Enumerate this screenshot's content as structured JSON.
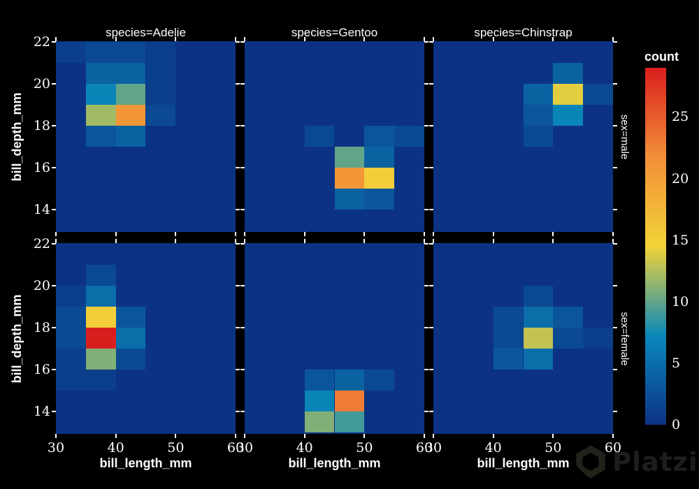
{
  "colors": {
    "figure_background": "#000000",
    "panel_background": "rgb(12,51,131)",
    "text": "#ffffff",
    "watermark": "#22221b"
  },
  "watermark": {
    "text": "Platzi",
    "logo": "platzi-logo"
  },
  "chart_data": {
    "type": "heatmap",
    "subtype": "faceted-2d-histogram",
    "title": "",
    "xlabel": "bill_length_mm",
    "ylabel": "bill_depth_mm",
    "x_axis": {
      "label": "bill_length_mm",
      "range": [
        30,
        60
      ],
      "ticks": [
        30,
        40,
        50,
        60
      ],
      "bin_width": 5
    },
    "y_axis": {
      "label": "bill_depth_mm",
      "range": [
        12.93,
        22.03
      ],
      "ticks": [
        22,
        20,
        18,
        16,
        14
      ],
      "bin_width": 1
    },
    "facet_columns": [
      "species=Adelie",
      "species=Gentoo",
      "species=Chinstrap"
    ],
    "facet_rows": [
      "sex=male",
      "sex=female"
    ],
    "grid": "off",
    "legend_position": "right-colorbar",
    "colorbar": {
      "title": "count",
      "ticks": [
        0,
        5,
        10,
        15,
        20,
        25
      ],
      "min": 0,
      "max": 29,
      "colorscale_name": "Portland",
      "colorscale_stops": [
        [
          0.0,
          "rgb(12,51,131)"
        ],
        [
          0.25,
          "rgb(10,136,186)"
        ],
        [
          0.5,
          "rgb(242,211,56)"
        ],
        [
          0.75,
          "rgb(242,143,56)"
        ],
        [
          1.0,
          "rgb(217,30,30)"
        ]
      ]
    },
    "panels": [
      {
        "species": "Adelie",
        "sex": "male",
        "row": 0,
        "col": 0,
        "cells": [
          {
            "x": 30,
            "y": 21,
            "count": 1
          },
          {
            "x": 35,
            "y": 21,
            "count": 2
          },
          {
            "x": 40,
            "y": 21,
            "count": 2
          },
          {
            "x": 45,
            "y": 21,
            "count": 1
          },
          {
            "x": 35,
            "y": 20,
            "count": 4
          },
          {
            "x": 40,
            "y": 20,
            "count": 4
          },
          {
            "x": 45,
            "y": 20,
            "count": 1
          },
          {
            "x": 35,
            "y": 19,
            "count": 7
          },
          {
            "x": 40,
            "y": 19,
            "count": 10
          },
          {
            "x": 45,
            "y": 19,
            "count": 1
          },
          {
            "x": 35,
            "y": 18,
            "count": 12
          },
          {
            "x": 40,
            "y": 18,
            "count": 21
          },
          {
            "x": 45,
            "y": 18,
            "count": 2
          },
          {
            "x": 35,
            "y": 17,
            "count": 3
          },
          {
            "x": 40,
            "y": 17,
            "count": 4
          }
        ]
      },
      {
        "species": "Gentoo",
        "sex": "male",
        "row": 0,
        "col": 1,
        "cells": [
          {
            "x": 40,
            "y": 17,
            "count": 2
          },
          {
            "x": 50,
            "y": 17,
            "count": 3
          },
          {
            "x": 55,
            "y": 17,
            "count": 2
          },
          {
            "x": 45,
            "y": 16,
            "count": 10
          },
          {
            "x": 50,
            "y": 16,
            "count": 4
          },
          {
            "x": 45,
            "y": 15,
            "count": 21
          },
          {
            "x": 50,
            "y": 15,
            "count": 15
          },
          {
            "x": 45,
            "y": 14,
            "count": 4
          },
          {
            "x": 50,
            "y": 14,
            "count": 3
          }
        ]
      },
      {
        "species": "Chinstrap",
        "sex": "male",
        "row": 0,
        "col": 2,
        "cells": [
          {
            "x": 50,
            "y": 20,
            "count": 4
          },
          {
            "x": 45,
            "y": 19,
            "count": 4
          },
          {
            "x": 50,
            "y": 19,
            "count": 14
          },
          {
            "x": 55,
            "y": 19,
            "count": 2
          },
          {
            "x": 45,
            "y": 18,
            "count": 3
          },
          {
            "x": 50,
            "y": 18,
            "count": 7
          },
          {
            "x": 45,
            "y": 17,
            "count": 2
          }
        ]
      },
      {
        "species": "Adelie",
        "sex": "female",
        "row": 1,
        "col": 0,
        "cells": [
          {
            "x": 35,
            "y": 20,
            "count": 2
          },
          {
            "x": 30,
            "y": 19,
            "count": 1
          },
          {
            "x": 35,
            "y": 19,
            "count": 5
          },
          {
            "x": 30,
            "y": 18,
            "count": 2
          },
          {
            "x": 35,
            "y": 18,
            "count": 15
          },
          {
            "x": 40,
            "y": 18,
            "count": 3
          },
          {
            "x": 30,
            "y": 17,
            "count": 2
          },
          {
            "x": 35,
            "y": 17,
            "count": 29
          },
          {
            "x": 40,
            "y": 17,
            "count": 5
          },
          {
            "x": 30,
            "y": 16,
            "count": 1
          },
          {
            "x": 35,
            "y": 16,
            "count": 11
          },
          {
            "x": 40,
            "y": 16,
            "count": 2
          },
          {
            "x": 30,
            "y": 15,
            "count": 1
          },
          {
            "x": 35,
            "y": 15,
            "count": 1
          }
        ]
      },
      {
        "species": "Gentoo",
        "sex": "female",
        "row": 1,
        "col": 1,
        "cells": [
          {
            "x": 40,
            "y": 15,
            "count": 3
          },
          {
            "x": 45,
            "y": 15,
            "count": 4
          },
          {
            "x": 50,
            "y": 15,
            "count": 2
          },
          {
            "x": 40,
            "y": 14,
            "count": 7
          },
          {
            "x": 45,
            "y": 14,
            "count": 23
          },
          {
            "x": 40,
            "y": 13,
            "count": 11
          },
          {
            "x": 45,
            "y": 13,
            "count": 9
          }
        ]
      },
      {
        "species": "Chinstrap",
        "sex": "female",
        "row": 1,
        "col": 2,
        "cells": [
          {
            "x": 45,
            "y": 19,
            "count": 2
          },
          {
            "x": 40,
            "y": 18,
            "count": 2
          },
          {
            "x": 45,
            "y": 18,
            "count": 5
          },
          {
            "x": 50,
            "y": 18,
            "count": 3
          },
          {
            "x": 40,
            "y": 17,
            "count": 2
          },
          {
            "x": 45,
            "y": 17,
            "count": 13
          },
          {
            "x": 50,
            "y": 17,
            "count": 2
          },
          {
            "x": 55,
            "y": 17,
            "count": 1
          },
          {
            "x": 40,
            "y": 16,
            "count": 3
          },
          {
            "x": 45,
            "y": 16,
            "count": 5
          }
        ]
      }
    ]
  }
}
